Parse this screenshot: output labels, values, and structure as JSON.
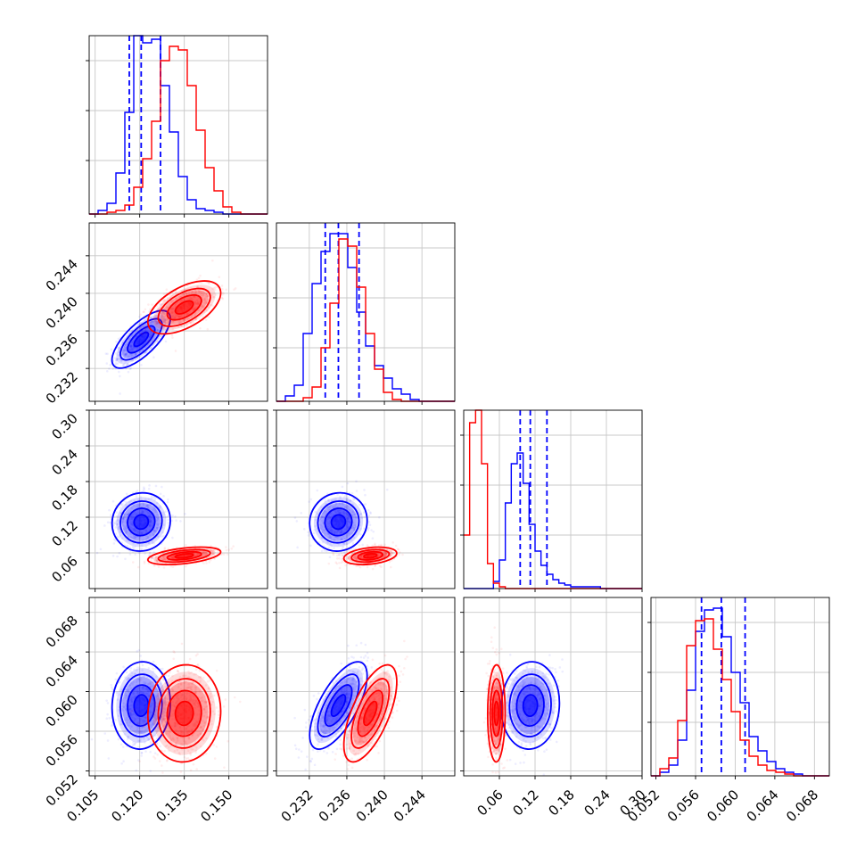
{
  "chart_data": {
    "type": "corner",
    "grid": true,
    "parameters": [
      {
        "ticks": [
          "0.105",
          "0.120",
          "0.135",
          "0.150"
        ],
        "tick_values": [
          0.105,
          0.12,
          0.135,
          0.15
        ],
        "range": [
          0.103,
          0.163
        ]
      },
      {
        "ticks": [
          "0.232",
          "0.236",
          "0.240",
          "0.244"
        ],
        "tick_values": [
          0.232,
          0.236,
          0.24,
          0.244
        ],
        "range": [
          0.2285,
          0.2475
        ]
      },
      {
        "ticks": [
          "0.06",
          "0.12",
          "0.18",
          "0.24",
          "0.30"
        ],
        "tick_values": [
          0.06,
          0.12,
          0.18,
          0.24,
          0.3
        ],
        "range": [
          0.0,
          0.3
        ]
      },
      {
        "ticks": [
          "0.052",
          "0.056",
          "0.060",
          "0.064",
          "0.068"
        ],
        "tick_values": [
          0.052,
          0.056,
          0.06,
          0.064,
          0.068
        ],
        "range": [
          0.0515,
          0.0695
        ]
      }
    ],
    "series": [
      {
        "color": "#0000ff",
        "means": [
          0.1205,
          0.2351,
          0.112,
          0.0586
        ],
        "sigmas": [
          0.004,
          0.00125,
          0.02,
          0.0018
        ],
        "quantile_lines": [
          [
            0.1165,
            0.1205,
            0.127
          ],
          [
            0.2337,
            0.2351,
            0.2373
          ],
          [
            0.095,
            0.112,
            0.14
          ],
          [
            0.0566,
            0.0586,
            0.061
          ]
        ],
        "histograms": [
          {
            "edges": [
              0.103,
              0.163
            ],
            "counts": [
              0,
              0.02,
              0.06,
              0.23,
              0.57,
              1.0,
              0.96,
              0.98,
              0.72,
              0.46,
              0.21,
              0.08,
              0.03,
              0.02,
              0.01,
              0,
              0,
              0,
              0,
              0
            ]
          },
          {
            "edges": [
              0.2285,
              0.2475
            ],
            "counts": [
              0,
              0.03,
              0.09,
              0.38,
              0.66,
              0.84,
              0.94,
              0.94,
              0.75,
              0.5,
              0.31,
              0.2,
              0.13,
              0.07,
              0.04,
              0.01,
              0,
              0,
              0,
              0
            ]
          },
          {
            "edges": [
              0.0,
              0.3
            ],
            "counts": [
              0,
              0,
              0,
              0,
              0,
              0.04,
              0.16,
              0.48,
              0.7,
              0.76,
              0.59,
              0.36,
              0.21,
              0.13,
              0.08,
              0.05,
              0.03,
              0.02,
              0.01,
              0.01,
              0.01,
              0.01,
              0.01,
              0,
              0,
              0,
              0,
              0,
              0,
              0
            ]
          },
          {
            "edges": [
              0.0515,
              0.0695
            ],
            "counts": [
              0,
              0.02,
              0.06,
              0.2,
              0.48,
              0.81,
              0.93,
              0.94,
              0.78,
              0.58,
              0.41,
              0.22,
              0.14,
              0.08,
              0.04,
              0.02,
              0.01,
              0,
              0,
              0
            ]
          }
        ]
      },
      {
        "color": "#ff0000",
        "means": [
          0.135,
          0.2385,
          0.055,
          0.0578
        ],
        "sigmas": [
          0.005,
          0.00115,
          0.006,
          0.002
        ],
        "quantile_lines": null,
        "histograms": [
          {
            "edges": [
              0.103,
              0.163
            ],
            "counts": [
              0,
              0,
              0.01,
              0.02,
              0.05,
              0.15,
              0.31,
              0.52,
              0.86,
              0.94,
              0.92,
              0.72,
              0.47,
              0.26,
              0.13,
              0.04,
              0.01,
              0,
              0,
              0
            ]
          },
          {
            "edges": [
              0.2285,
              0.2475
            ],
            "counts": [
              0,
              0,
              0,
              0.02,
              0.08,
              0.3,
              0.55,
              0.91,
              0.87,
              0.64,
              0.38,
              0.18,
              0.05,
              0.01,
              0,
              0,
              0,
              0,
              0,
              0
            ]
          },
          {
            "edges": [
              0.0,
              0.3
            ],
            "counts": [
              0.3,
              0.93,
              1.0,
              0.7,
              0.14,
              0.03,
              0.01,
              0,
              0,
              0,
              0,
              0,
              0,
              0,
              0,
              0,
              0,
              0,
              0,
              0,
              0,
              0,
              0,
              0,
              0,
              0,
              0,
              0,
              0,
              0
            ]
          },
          {
            "edges": [
              0.0515,
              0.0695
            ],
            "counts": [
              0,
              0.04,
              0.1,
              0.31,
              0.73,
              0.87,
              0.88,
              0.71,
              0.54,
              0.36,
              0.2,
              0.11,
              0.06,
              0.03,
              0.02,
              0.01,
              0,
              0,
              0,
              0
            ]
          }
        ]
      }
    ]
  }
}
